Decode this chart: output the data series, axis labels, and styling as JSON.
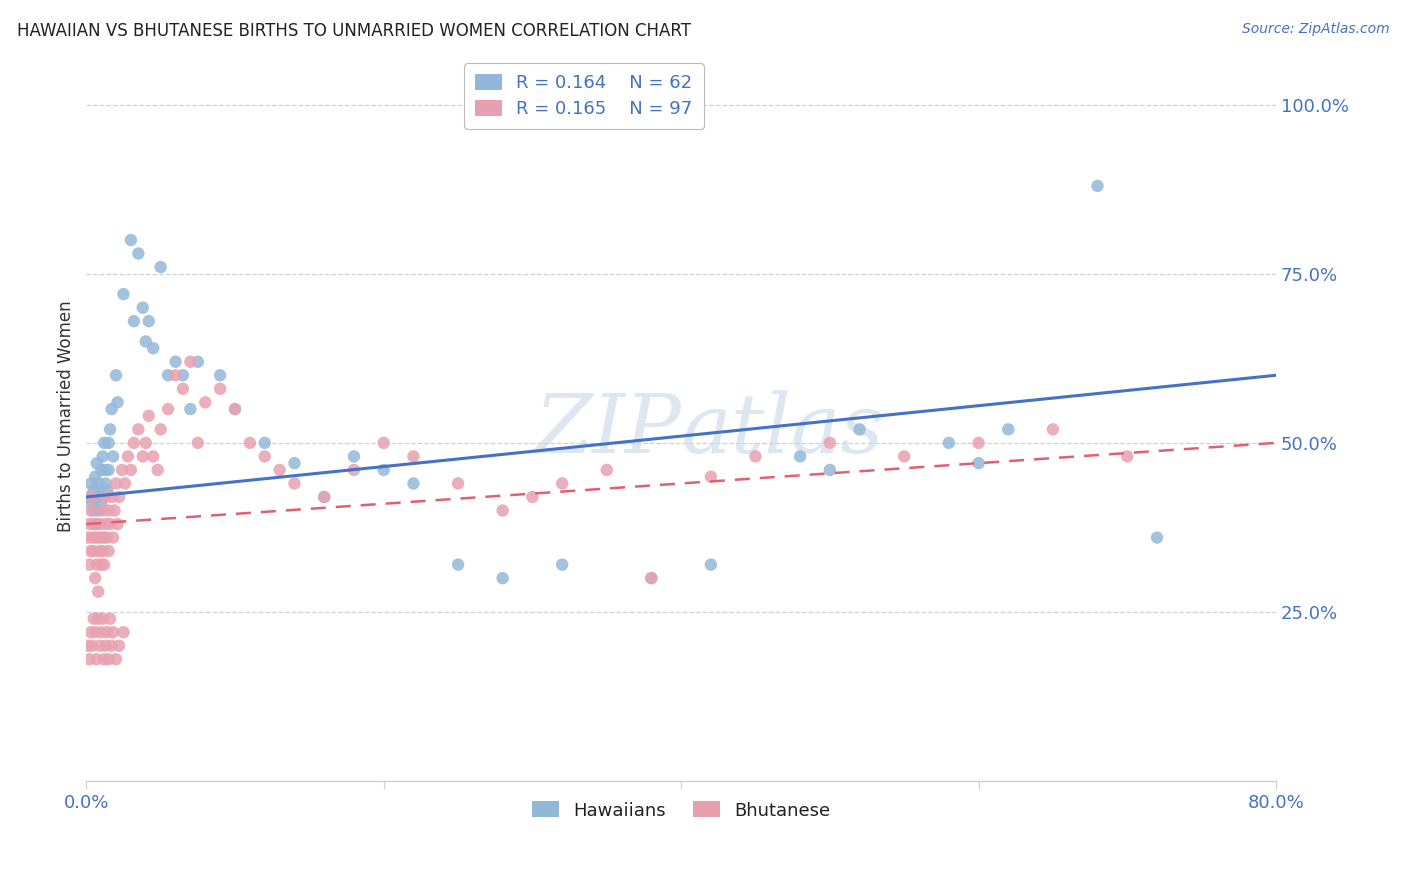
{
  "title": "HAWAIIAN VS BHUTANESE BIRTHS TO UNMARRIED WOMEN CORRELATION CHART",
  "source": "Source: ZipAtlas.com",
  "ylabel": "Births to Unmarried Women",
  "legend_blue": {
    "R": "0.164",
    "N": "62"
  },
  "legend_pink": {
    "R": "0.165",
    "N": "97"
  },
  "blue_color": "#92b8d9",
  "pink_color": "#e8a0b0",
  "line_blue_color": "#4472C4",
  "line_pink_color": "#e06070",
  "grid_color": "#d0d0d0",
  "tick_color": "#4472C4",
  "title_color": "#222222",
  "watermark_color": "#c8d8e8",
  "hawaiians_x": [
    0.002,
    0.003,
    0.004,
    0.005,
    0.005,
    0.006,
    0.006,
    0.007,
    0.007,
    0.008,
    0.008,
    0.009,
    0.01,
    0.01,
    0.011,
    0.012,
    0.012,
    0.013,
    0.013,
    0.014,
    0.015,
    0.015,
    0.016,
    0.017,
    0.018,
    0.02,
    0.021,
    0.025,
    0.03,
    0.032,
    0.035,
    0.038,
    0.04,
    0.042,
    0.045,
    0.05,
    0.055,
    0.06,
    0.065,
    0.07,
    0.075,
    0.09,
    0.1,
    0.12,
    0.14,
    0.16,
    0.18,
    0.2,
    0.22,
    0.25,
    0.28,
    0.32,
    0.38,
    0.42,
    0.48,
    0.52,
    0.58,
    0.62,
    0.68,
    0.72,
    0.5,
    0.6
  ],
  "hawaiians_y": [
    0.42,
    0.44,
    0.41,
    0.4,
    0.43,
    0.38,
    0.45,
    0.42,
    0.47,
    0.4,
    0.44,
    0.43,
    0.41,
    0.46,
    0.48,
    0.42,
    0.5,
    0.44,
    0.46,
    0.43,
    0.5,
    0.46,
    0.52,
    0.55,
    0.48,
    0.6,
    0.56,
    0.72,
    0.8,
    0.68,
    0.78,
    0.7,
    0.65,
    0.68,
    0.64,
    0.76,
    0.6,
    0.62,
    0.6,
    0.55,
    0.62,
    0.6,
    0.55,
    0.5,
    0.47,
    0.42,
    0.48,
    0.46,
    0.44,
    0.32,
    0.3,
    0.32,
    0.3,
    0.32,
    0.48,
    0.52,
    0.5,
    0.52,
    0.88,
    0.36,
    0.46,
    0.47
  ],
  "bhutanese_x": [
    0.001,
    0.002,
    0.002,
    0.003,
    0.003,
    0.004,
    0.004,
    0.005,
    0.005,
    0.006,
    0.006,
    0.007,
    0.007,
    0.008,
    0.008,
    0.009,
    0.009,
    0.01,
    0.01,
    0.011,
    0.011,
    0.012,
    0.012,
    0.013,
    0.013,
    0.014,
    0.015,
    0.015,
    0.016,
    0.017,
    0.018,
    0.019,
    0.02,
    0.021,
    0.022,
    0.024,
    0.026,
    0.028,
    0.03,
    0.032,
    0.035,
    0.038,
    0.04,
    0.042,
    0.045,
    0.048,
    0.05,
    0.055,
    0.06,
    0.065,
    0.07,
    0.075,
    0.08,
    0.09,
    0.1,
    0.11,
    0.12,
    0.13,
    0.14,
    0.16,
    0.18,
    0.2,
    0.22,
    0.25,
    0.28,
    0.3,
    0.32,
    0.35,
    0.38,
    0.42,
    0.45,
    0.5,
    0.55,
    0.6,
    0.65,
    0.7,
    0.001,
    0.002,
    0.003,
    0.004,
    0.005,
    0.006,
    0.007,
    0.008,
    0.009,
    0.01,
    0.011,
    0.012,
    0.013,
    0.014,
    0.015,
    0.016,
    0.017,
    0.018,
    0.02,
    0.022,
    0.025
  ],
  "bhutanese_y": [
    0.36,
    0.38,
    0.32,
    0.34,
    0.4,
    0.36,
    0.42,
    0.38,
    0.34,
    0.36,
    0.3,
    0.38,
    0.32,
    0.36,
    0.28,
    0.34,
    0.38,
    0.32,
    0.36,
    0.34,
    0.4,
    0.36,
    0.32,
    0.38,
    0.42,
    0.36,
    0.4,
    0.34,
    0.38,
    0.42,
    0.36,
    0.4,
    0.44,
    0.38,
    0.42,
    0.46,
    0.44,
    0.48,
    0.46,
    0.5,
    0.52,
    0.48,
    0.5,
    0.54,
    0.48,
    0.46,
    0.52,
    0.55,
    0.6,
    0.58,
    0.62,
    0.5,
    0.56,
    0.58,
    0.55,
    0.5,
    0.48,
    0.46,
    0.44,
    0.42,
    0.46,
    0.5,
    0.48,
    0.44,
    0.4,
    0.42,
    0.44,
    0.46,
    0.3,
    0.45,
    0.48,
    0.5,
    0.48,
    0.5,
    0.52,
    0.48,
    0.2,
    0.18,
    0.22,
    0.2,
    0.24,
    0.22,
    0.18,
    0.24,
    0.2,
    0.22,
    0.24,
    0.18,
    0.2,
    0.22,
    0.18,
    0.24,
    0.2,
    0.22,
    0.18,
    0.2,
    0.22
  ],
  "xlim": [
    0.0,
    0.8
  ],
  "ylim": [
    0.0,
    1.08
  ],
  "xticks": [
    0.0,
    0.2,
    0.4,
    0.6,
    0.8
  ],
  "xtick_labels": [
    "0.0%",
    "",
    "",
    "",
    "80.0%"
  ],
  "ytick_vals": [
    0.25,
    0.5,
    0.75,
    1.0
  ],
  "ytick_labels": [
    "25.0%",
    "50.0%",
    "75.0%",
    "100.0%"
  ],
  "blue_line_x": [
    0.0,
    0.8
  ],
  "blue_line_y_start": 0.42,
  "blue_line_y_end": 0.6,
  "pink_line_y_start": 0.38,
  "pink_line_y_end": 0.5
}
